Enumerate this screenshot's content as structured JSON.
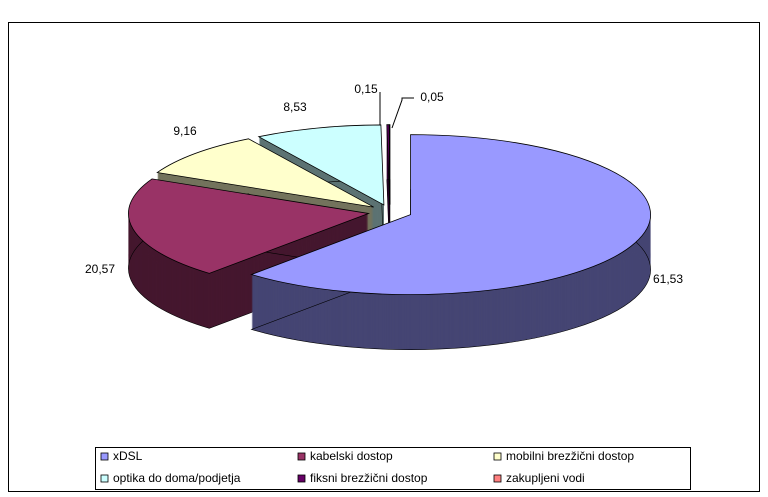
{
  "chart_data": {
    "type": "pie3d",
    "categories": [
      "xDSL",
      "kabelski dostop",
      "mobilni brezžični dostop",
      "optika do doma/podjetja",
      "fiksni brezžični dostop",
      "zakupljeni vodi"
    ],
    "values": [
      61.53,
      20.57,
      9.16,
      8.53,
      0.15,
      0.05
    ],
    "value_labels": [
      "61,53",
      "20,57",
      "9,16",
      "8,53",
      "0,15",
      "0,05"
    ],
    "colors": [
      "#9999ff",
      "#993366",
      "#ffffcc",
      "#ccffff",
      "#660066",
      "#ff8080"
    ],
    "legend": "bottom"
  }
}
